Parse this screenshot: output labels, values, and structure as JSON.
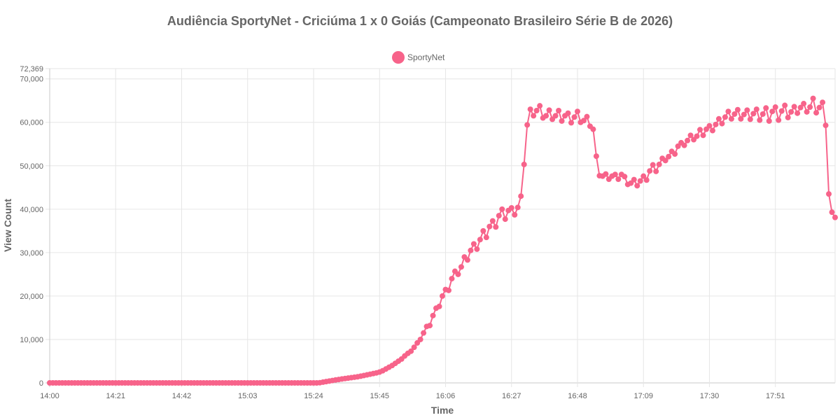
{
  "chart_data": {
    "type": "line",
    "title": "Audiência SportyNet - Criciúma 1 x 0 Goiás (Campeonato Brasileiro Série B de 2026)",
    "xlabel": "Time",
    "ylabel": "View Count",
    "x_ticks": [
      "14:00",
      "14:21",
      "14:42",
      "15:03",
      "15:24",
      "15:45",
      "16:06",
      "16:27",
      "16:48",
      "17:09",
      "17:30",
      "17:51"
    ],
    "y_ticks": [
      "0",
      "10,000",
      "20,000",
      "30,000",
      "40,000",
      "50,000",
      "60,000",
      "70,000"
    ],
    "y_max_label": "72,369",
    "ylim": [
      0,
      72369
    ],
    "x_start": "14:00",
    "x_end": "18:03",
    "interval_minutes": 1,
    "grid": true,
    "legend": "top-center",
    "color": "#f7638a",
    "series": [
      {
        "name": "SportyNet",
        "values": [
          0,
          0,
          0,
          0,
          0,
          0,
          0,
          0,
          0,
          0,
          0,
          0,
          0,
          0,
          0,
          0,
          0,
          0,
          0,
          0,
          0,
          0,
          0,
          0,
          0,
          0,
          0,
          0,
          0,
          0,
          0,
          0,
          0,
          0,
          0,
          0,
          0,
          0,
          0,
          0,
          0,
          0,
          0,
          0,
          0,
          0,
          0,
          0,
          0,
          0,
          0,
          0,
          0,
          0,
          0,
          0,
          0,
          0,
          0,
          0,
          0,
          0,
          0,
          0,
          0,
          0,
          0,
          0,
          0,
          0,
          0,
          0,
          0,
          0,
          0,
          0,
          0,
          0,
          0,
          0,
          0,
          0,
          0,
          0,
          0,
          0,
          50,
          180,
          300,
          420,
          550,
          680,
          780,
          900,
          1000,
          1100,
          1200,
          1300,
          1400,
          1550,
          1700,
          1850,
          2000,
          2150,
          2300,
          2500,
          2800,
          3200,
          3600,
          4000,
          4500,
          5000,
          5500,
          6200,
          6800,
          7300,
          8200,
          9200,
          10000,
          11500,
          13000,
          13200,
          15500,
          17200,
          17600,
          20000,
          21500,
          21300,
          24000,
          25700,
          25000,
          26700,
          29000,
          28300,
          30500,
          32000,
          30800,
          33000,
          35000,
          33500,
          36000,
          37300,
          35900,
          38500,
          40000,
          37700,
          39700,
          40300,
          38700,
          40400,
          43000,
          50300,
          59400,
          63000,
          61500,
          62700,
          63800,
          61000,
          61500,
          62800,
          60700,
          61500,
          62700,
          60300,
          61500,
          62100,
          59900,
          61200,
          62500,
          60000,
          60400,
          61300,
          59100,
          58400,
          52200,
          47700,
          47600,
          48100,
          46900,
          47600,
          48000,
          46900,
          48000,
          47500,
          45700,
          46000,
          46800,
          45400,
          46500,
          47600,
          46700,
          48800,
          50200,
          48700,
          50300,
          51700,
          51200,
          52100,
          53300,
          52700,
          54500,
          55300,
          54700,
          55800,
          57000,
          56000,
          56800,
          58300,
          57000,
          58400,
          59200,
          58100,
          59500,
          60800,
          59700,
          61200,
          62500,
          60800,
          61900,
          62900,
          60800,
          61800,
          62800,
          60700,
          62000,
          63000,
          60500,
          61900,
          63300,
          60300,
          62500,
          63500,
          60500,
          62600,
          63900,
          61100,
          62400,
          63600,
          62100,
          63400,
          64300,
          62400,
          63500,
          65500,
          62200,
          63400,
          64600,
          59300,
          43500,
          39300,
          38100
        ]
      }
    ]
  }
}
